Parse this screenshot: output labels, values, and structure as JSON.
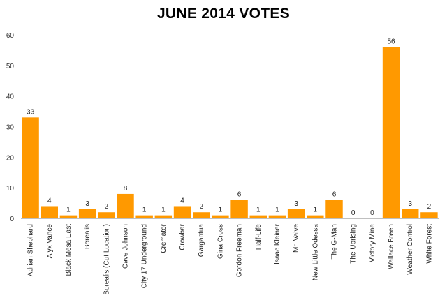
{
  "chart_data": {
    "type": "bar",
    "title": "JUNE 2014 VOTES",
    "xlabel": "",
    "ylabel": "",
    "ylim": [
      0,
      60
    ],
    "yticks": [
      0,
      10,
      20,
      30,
      40,
      50,
      60
    ],
    "grid": false,
    "legend": "none",
    "bar_color": "#FF9900",
    "categories": [
      "Adrian Shephard",
      "Alyx Vance",
      "Black Mesa East",
      "Borealis",
      "Borealis (Cut Location)",
      "Cave Johnson",
      "City 17 Underground",
      "Cremator",
      "Crowbar",
      "Gargantua",
      "Gina Cross",
      "Gordon Freeman",
      "Half-Life",
      "Isaac Kleiner",
      "Mr. Valve",
      "New Little Odessa",
      "The G-Man",
      "The Uprising",
      "Victory Mine",
      "Wallace Breen",
      "Weather Control",
      "White Forest"
    ],
    "values": [
      33,
      4,
      1,
      3,
      2,
      8,
      1,
      1,
      4,
      2,
      1,
      6,
      1,
      1,
      3,
      1,
      6,
      0,
      0,
      56,
      3,
      2
    ]
  }
}
